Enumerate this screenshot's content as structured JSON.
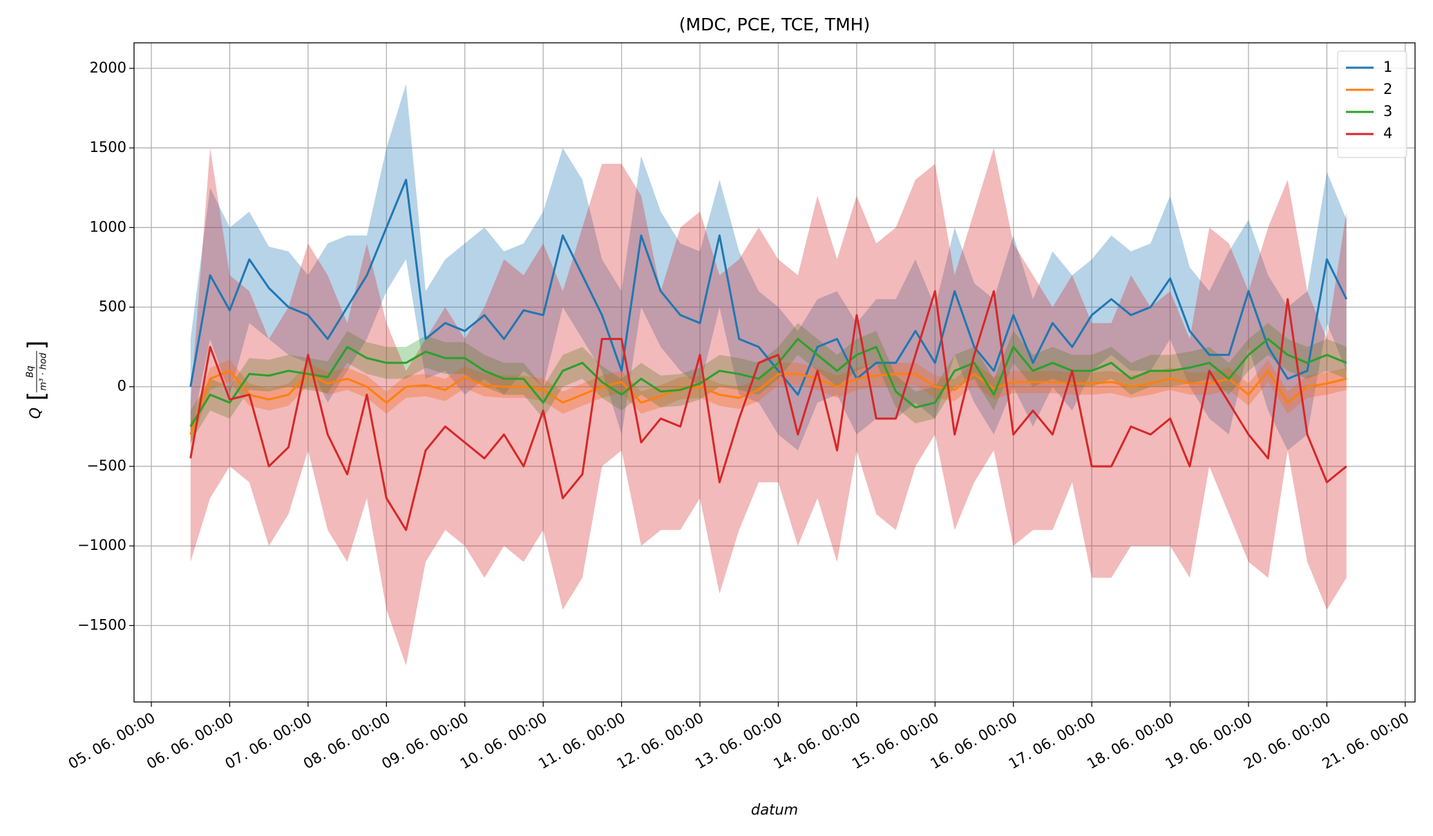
{
  "chart_data": {
    "type": "line",
    "title": "(MDC, PCE, TCE, TMH)",
    "xlabel": "datum",
    "ylabel": {
      "symbol": "Q",
      "numerator": "Bq",
      "denominator": "m³ · hod"
    },
    "xlim": [
      -5.3,
      387
    ],
    "ylim": [
      -1980,
      2160
    ],
    "xticks": [
      {
        "value": 0,
        "label": "05. 06. 00:00"
      },
      {
        "value": 24,
        "label": "06. 06. 00:00"
      },
      {
        "value": 48,
        "label": "07. 06. 00:00"
      },
      {
        "value": 72,
        "label": "08. 06. 00:00"
      },
      {
        "value": 96,
        "label": "09. 06. 00:00"
      },
      {
        "value": 120,
        "label": "10. 06. 00:00"
      },
      {
        "value": 144,
        "label": "11. 06. 00:00"
      },
      {
        "value": 168,
        "label": "12. 06. 00:00"
      },
      {
        "value": 192,
        "label": "13. 06. 00:00"
      },
      {
        "value": 216,
        "label": "14. 06. 00:00"
      },
      {
        "value": 240,
        "label": "15. 06. 00:00"
      },
      {
        "value": 264,
        "label": "16. 06. 00:00"
      },
      {
        "value": 288,
        "label": "17. 06. 00:00"
      },
      {
        "value": 312,
        "label": "18. 06. 00:00"
      },
      {
        "value": 336,
        "label": "19. 06. 00:00"
      },
      {
        "value": 360,
        "label": "20. 06. 00:00"
      },
      {
        "value": 384,
        "label": "21. 06. 00:00"
      }
    ],
    "yticks": [
      {
        "value": -1500,
        "label": "−1500"
      },
      {
        "value": -1000,
        "label": "−1000"
      },
      {
        "value": -500,
        "label": "−500"
      },
      0,
      500,
      1000,
      1500,
      2000
    ],
    "grid": true,
    "legend": "upper right",
    "x": [
      12,
      18,
      24,
      30,
      36,
      42,
      48,
      54,
      60,
      66,
      72,
      78,
      84,
      90,
      96,
      102,
      108,
      114,
      120,
      126,
      132,
      138,
      144,
      150,
      156,
      162,
      168,
      174,
      180,
      186,
      192,
      198,
      204,
      210,
      216,
      222,
      228,
      234,
      240,
      246,
      252,
      258,
      264,
      270,
      276,
      282,
      288,
      294,
      300,
      306,
      312,
      318,
      324,
      330,
      336,
      342,
      348,
      354,
      360,
      366
    ],
    "series": [
      {
        "name": "1",
        "color": "#1f77b4",
        "values": [
          0,
          700,
          480,
          800,
          620,
          500,
          450,
          300,
          500,
          700,
          1000,
          1300,
          300,
          400,
          350,
          450,
          300,
          480,
          450,
          950,
          700,
          450,
          100,
          950,
          600,
          450,
          400,
          950,
          300,
          250,
          100,
          -50,
          250,
          300,
          50,
          150,
          150,
          350,
          150,
          600,
          250,
          100,
          450,
          150,
          400,
          250,
          450,
          550,
          450,
          500,
          680,
          350,
          200,
          200,
          600,
          250,
          50,
          100,
          800,
          550
        ],
        "upper": [
          300,
          1250,
          1000,
          1100,
          880,
          850,
          700,
          900,
          950,
          950,
          1500,
          1900,
          600,
          800,
          900,
          1000,
          850,
          900,
          1100,
          1500,
          1300,
          800,
          600,
          1450,
          1100,
          900,
          850,
          1300,
          850,
          600,
          500,
          350,
          550,
          600,
          400,
          550,
          550,
          800,
          500,
          1000,
          650,
          550,
          950,
          550,
          850,
          700,
          800,
          950,
          850,
          900,
          1200,
          750,
          600,
          850,
          1050,
          700,
          500,
          600,
          1350,
          1050
        ],
        "lower": [
          -300,
          300,
          -50,
          400,
          300,
          200,
          150,
          -100,
          100,
          300,
          600,
          800,
          50,
          100,
          -50,
          50,
          -50,
          100,
          0,
          500,
          300,
          100,
          -300,
          500,
          250,
          100,
          0,
          500,
          -50,
          -100,
          -300,
          -400,
          -100,
          -50,
          -300,
          -200,
          -200,
          -100,
          -200,
          200,
          -100,
          -300,
          0,
          -250,
          0,
          -150,
          100,
          200,
          100,
          100,
          300,
          0,
          -200,
          -300,
          250,
          -150,
          -400,
          -300,
          400,
          100
        ]
      },
      {
        "name": "2",
        "color": "#ff7f0e",
        "values": [
          -300,
          50,
          100,
          -50,
          -80,
          -50,
          80,
          20,
          50,
          0,
          -100,
          0,
          10,
          -20,
          60,
          10,
          0,
          0,
          -20,
          -100,
          -50,
          0,
          30,
          -100,
          -60,
          -10,
          0,
          -50,
          -70,
          -20,
          80,
          80,
          50,
          0,
          50,
          70,
          80,
          80,
          0,
          -20,
          80,
          -10,
          30,
          30,
          30,
          20,
          20,
          30,
          0,
          20,
          50,
          20,
          20,
          50,
          -50,
          100,
          -100,
          0,
          20,
          50
        ],
        "upper": [
          -230,
          120,
          170,
          20,
          -10,
          20,
          150,
          90,
          120,
          70,
          -30,
          70,
          80,
          50,
          130,
          80,
          70,
          70,
          50,
          -30,
          20,
          70,
          100,
          -30,
          10,
          60,
          70,
          20,
          0,
          50,
          150,
          150,
          120,
          70,
          120,
          140,
          150,
          150,
          70,
          50,
          150,
          60,
          100,
          100,
          100,
          90,
          90,
          100,
          70,
          90,
          120,
          90,
          90,
          120,
          20,
          170,
          -30,
          70,
          90,
          120
        ],
        "lower": [
          -370,
          -20,
          30,
          -120,
          -150,
          -120,
          10,
          -50,
          -20,
          -70,
          -170,
          -70,
          -60,
          -90,
          -10,
          -60,
          -70,
          -70,
          -90,
          -170,
          -120,
          -70,
          -40,
          -170,
          -130,
          -80,
          -70,
          -120,
          -140,
          -90,
          10,
          10,
          -20,
          -70,
          -20,
          0,
          10,
          10,
          -70,
          -90,
          10,
          -80,
          -40,
          -40,
          -40,
          -50,
          -50,
          -40,
          -70,
          -50,
          -20,
          -50,
          -50,
          -20,
          -120,
          30,
          -170,
          -70,
          -50,
          -20
        ]
      },
      {
        "name": "3",
        "color": "#2ca02c",
        "values": [
          -250,
          -50,
          -100,
          80,
          70,
          100,
          80,
          60,
          250,
          180,
          150,
          150,
          220,
          180,
          180,
          100,
          50,
          50,
          -100,
          100,
          150,
          30,
          -50,
          50,
          -30,
          -20,
          20,
          100,
          80,
          50,
          150,
          300,
          200,
          100,
          200,
          250,
          -30,
          -130,
          -100,
          100,
          150,
          -50,
          250,
          100,
          150,
          100,
          100,
          150,
          50,
          100,
          100,
          120,
          150,
          50,
          200,
          300,
          200,
          150,
          200,
          150
        ],
        "upper": [
          -150,
          50,
          0,
          180,
          170,
          200,
          180,
          160,
          350,
          280,
          250,
          250,
          320,
          280,
          280,
          200,
          150,
          150,
          0,
          200,
          250,
          130,
          50,
          150,
          70,
          80,
          120,
          200,
          180,
          150,
          250,
          400,
          300,
          200,
          300,
          350,
          70,
          -30,
          0,
          200,
          250,
          50,
          350,
          200,
          250,
          200,
          200,
          250,
          150,
          200,
          200,
          220,
          250,
          150,
          300,
          400,
          300,
          250,
          300,
          250
        ],
        "lower": [
          -350,
          -150,
          -200,
          -20,
          -30,
          0,
          -20,
          -40,
          150,
          80,
          50,
          50,
          120,
          80,
          80,
          0,
          -50,
          -50,
          -200,
          0,
          50,
          -70,
          -150,
          -50,
          -130,
          -120,
          -80,
          0,
          -20,
          -50,
          50,
          200,
          100,
          0,
          100,
          150,
          -130,
          -230,
          -200,
          0,
          50,
          -150,
          150,
          0,
          50,
          0,
          0,
          50,
          -50,
          0,
          0,
          20,
          50,
          -50,
          100,
          200,
          100,
          50,
          100,
          50
        ]
      },
      {
        "name": "4",
        "color": "#d62728",
        "values": [
          -450,
          250,
          -80,
          -50,
          -500,
          -380,
          200,
          -300,
          -550,
          -50,
          -700,
          -900,
          -400,
          -250,
          -350,
          -450,
          -300,
          -500,
          -150,
          -700,
          -550,
          300,
          300,
          -350,
          -200,
          -250,
          200,
          -600,
          -200,
          150,
          200,
          -300,
          100,
          -400,
          450,
          -200,
          -200,
          200,
          600,
          -300,
          200,
          600,
          -300,
          -150,
          -300,
          100,
          -500,
          -500,
          -250,
          -300,
          -200,
          -500,
          100,
          -100,
          -300,
          -450,
          550,
          -300,
          -600,
          -500
        ],
        "upper": [
          -100,
          1500,
          700,
          600,
          300,
          500,
          900,
          700,
          400,
          900,
          400,
          100,
          300,
          500,
          300,
          500,
          800,
          700,
          900,
          600,
          1000,
          1400,
          1400,
          1200,
          600,
          1000,
          1100,
          700,
          800,
          1000,
          800,
          700,
          1200,
          800,
          1200,
          900,
          1000,
          1300,
          1400,
          700,
          1100,
          1500,
          900,
          700,
          500,
          700,
          400,
          400,
          700,
          500,
          600,
          300,
          1000,
          900,
          600,
          1000,
          1300,
          600,
          300,
          1100
        ],
        "lower": [
          -1100,
          -700,
          -500,
          -600,
          -1000,
          -800,
          -400,
          -900,
          -1100,
          -700,
          -1400,
          -1750,
          -1100,
          -900,
          -1000,
          -1200,
          -1000,
          -1100,
          -900,
          -1400,
          -1200,
          -500,
          -400,
          -1000,
          -900,
          -900,
          -700,
          -1300,
          -900,
          -600,
          -600,
          -1000,
          -700,
          -1100,
          -400,
          -800,
          -900,
          -500,
          -300,
          -900,
          -600,
          -400,
          -1000,
          -900,
          -900,
          -600,
          -1200,
          -1200,
          -1000,
          -1000,
          -1000,
          -1200,
          -500,
          -800,
          -1100,
          -1200,
          -400,
          -1100,
          -1400,
          -1200
        ]
      }
    ]
  }
}
